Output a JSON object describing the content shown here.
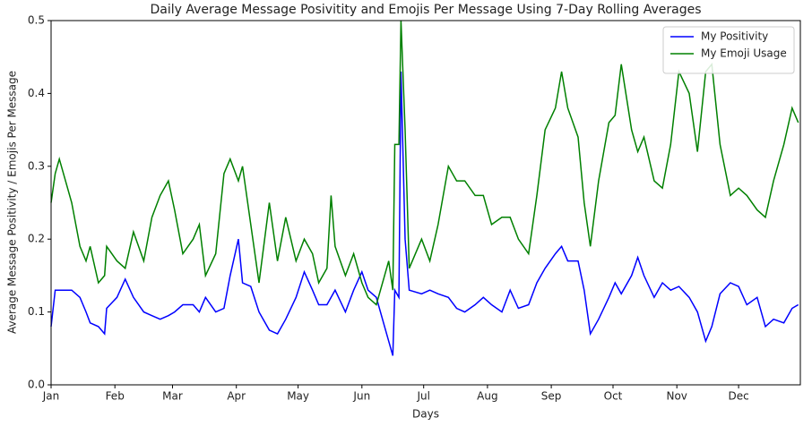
{
  "chart_data": {
    "type": "line",
    "title": "Daily Average Message Posivitity and Emojis Per Message Using 7-Day Rolling Averages",
    "x_label": "Days",
    "y_label": "Average Message Positivity / Emojis Per Message",
    "x": [
      0,
      2,
      4,
      8,
      10,
      14,
      17,
      19,
      23,
      26,
      27,
      32,
      36,
      40,
      45,
      49,
      53,
      57,
      60,
      64,
      69,
      72,
      75,
      80,
      84,
      87,
      91,
      93,
      97,
      101,
      106,
      110,
      114,
      119,
      123,
      127,
      130,
      134,
      136,
      138,
      143,
      147,
      151,
      154,
      158,
      162,
      164,
      166,
      167,
      169,
      170,
      172,
      174,
      180,
      184,
      188,
      193,
      197,
      201,
      206,
      210,
      214,
      219,
      223,
      227,
      232,
      236,
      240,
      245,
      248,
      251,
      256,
      259,
      262,
      266,
      271,
      274,
      277,
      282,
      285,
      288,
      293,
      297,
      301,
      305,
      310,
      314,
      318,
      321,
      325,
      330,
      334,
      338,
      343,
      347,
      351,
      356,
      360,
      363
    ],
    "series": [
      {
        "name": "My Positivity",
        "color": "#0000ff",
        "values": [
          0.08,
          0.13,
          0.13,
          0.13,
          0.13,
          0.12,
          0.1,
          0.085,
          0.08,
          0.07,
          0.105,
          0.12,
          0.145,
          0.12,
          0.1,
          0.095,
          0.09,
          0.095,
          0.1,
          0.11,
          0.11,
          0.1,
          0.12,
          0.1,
          0.105,
          0.15,
          0.2,
          0.14,
          0.135,
          0.1,
          0.075,
          0.07,
          0.09,
          0.12,
          0.155,
          0.13,
          0.11,
          0.11,
          0.12,
          0.13,
          0.1,
          0.13,
          0.155,
          0.13,
          0.12,
          0.08,
          0.06,
          0.04,
          0.13,
          0.12,
          0.43,
          0.2,
          0.13,
          0.125,
          0.13,
          0.125,
          0.12,
          0.105,
          0.1,
          0.11,
          0.12,
          0.11,
          0.1,
          0.13,
          0.105,
          0.11,
          0.14,
          0.16,
          0.18,
          0.19,
          0.17,
          0.17,
          0.13,
          0.07,
          0.09,
          0.12,
          0.14,
          0.125,
          0.15,
          0.175,
          0.15,
          0.12,
          0.14,
          0.13,
          0.135,
          0.12,
          0.1,
          0.06,
          0.08,
          0.125,
          0.14,
          0.135,
          0.11,
          0.12,
          0.08,
          0.09,
          0.085,
          0.105,
          0.11
        ]
      },
      {
        "name": "My Emoji Usage",
        "color": "#008000",
        "values": [
          0.25,
          0.29,
          0.31,
          0.27,
          0.25,
          0.19,
          0.17,
          0.19,
          0.14,
          0.15,
          0.19,
          0.17,
          0.16,
          0.21,
          0.17,
          0.23,
          0.26,
          0.28,
          0.24,
          0.18,
          0.2,
          0.22,
          0.15,
          0.18,
          0.29,
          0.31,
          0.28,
          0.3,
          0.22,
          0.14,
          0.25,
          0.17,
          0.23,
          0.17,
          0.2,
          0.18,
          0.14,
          0.16,
          0.26,
          0.19,
          0.15,
          0.18,
          0.14,
          0.12,
          0.11,
          0.15,
          0.17,
          0.13,
          0.33,
          0.33,
          0.5,
          0.35,
          0.16,
          0.2,
          0.17,
          0.22,
          0.3,
          0.28,
          0.28,
          0.26,
          0.26,
          0.22,
          0.23,
          0.23,
          0.2,
          0.18,
          0.26,
          0.35,
          0.38,
          0.43,
          0.38,
          0.34,
          0.25,
          0.19,
          0.28,
          0.36,
          0.37,
          0.44,
          0.35,
          0.32,
          0.34,
          0.28,
          0.27,
          0.33,
          0.43,
          0.4,
          0.32,
          0.43,
          0.44,
          0.33,
          0.26,
          0.27,
          0.26,
          0.24,
          0.23,
          0.28,
          0.33,
          0.38,
          0.36
        ]
      }
    ],
    "xlim": [
      0,
      364
    ],
    "xticks": [
      {
        "value": 0,
        "label": "Jan"
      },
      {
        "value": 31,
        "label": "Feb"
      },
      {
        "value": 59,
        "label": "Mar"
      },
      {
        "value": 90,
        "label": "Apr"
      },
      {
        "value": 120,
        "label": "May"
      },
      {
        "value": 151,
        "label": "Jun"
      },
      {
        "value": 181,
        "label": "Jul"
      },
      {
        "value": 212,
        "label": "Aug"
      },
      {
        "value": 243,
        "label": "Sep"
      },
      {
        "value": 273,
        "label": "Oct"
      },
      {
        "value": 304,
        "label": "Nov"
      },
      {
        "value": 334,
        "label": "Dec"
      }
    ],
    "ylim": [
      0,
      0.5
    ],
    "yticks": [
      {
        "value": 0,
        "label": "0.0"
      },
      0.1,
      0.2,
      0.3,
      0.4,
      0.5
    ],
    "legend": "upper right"
  }
}
